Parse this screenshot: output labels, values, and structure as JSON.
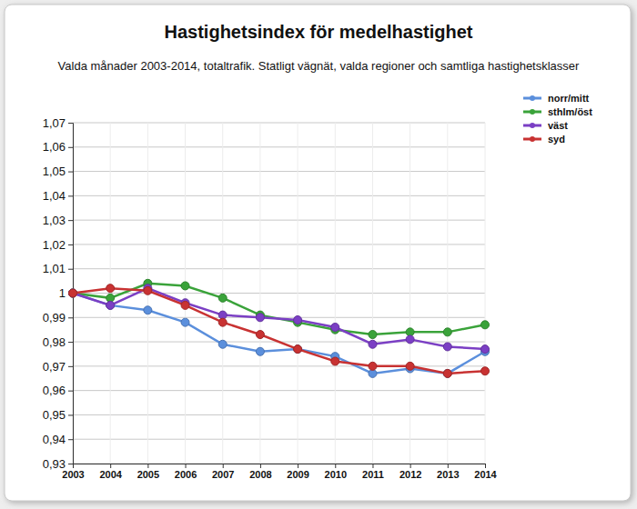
{
  "chart_data": {
    "type": "line",
    "title": "Hastighetsindex för medelhastighet",
    "subtitle": "Valda månader 2003-2014, totaltrafik. Statligt vägnät, valda regioner och samtliga hastighetsklasser",
    "x": [
      2003,
      2004,
      2005,
      2006,
      2007,
      2008,
      2009,
      2010,
      2011,
      2012,
      2013,
      2014
    ],
    "xlim": [
      2003,
      2014
    ],
    "xticks": [
      2003,
      2004,
      2005,
      2006,
      2007,
      2008,
      2009,
      2010,
      2011,
      2012,
      2013,
      2014
    ],
    "ylim": [
      0.93,
      1.07
    ],
    "yticks": [
      {
        "value": 0.93,
        "label": "0,93"
      },
      {
        "value": 0.94,
        "label": "0,94"
      },
      {
        "value": 0.95,
        "label": "0,95"
      },
      {
        "value": 0.96,
        "label": "0,96"
      },
      {
        "value": 0.97,
        "label": "0,97"
      },
      {
        "value": 0.98,
        "label": "0,98"
      },
      {
        "value": 0.99,
        "label": "0,99"
      },
      1,
      {
        "value": 1.01,
        "label": "1,01"
      },
      {
        "value": 1.02,
        "label": "1,02"
      },
      {
        "value": 1.03,
        "label": "1,03"
      },
      {
        "value": 1.04,
        "label": "1,04"
      },
      {
        "value": 1.05,
        "label": "1,05"
      },
      {
        "value": 1.06,
        "label": "1,06"
      },
      {
        "value": 1.07,
        "label": "1,07"
      }
    ],
    "grid": true,
    "legend": "top-right",
    "marker": "circle",
    "series": [
      {
        "name": "norr/mitt",
        "color": "#5b8fdc",
        "values": [
          1.0,
          0.995,
          0.993,
          0.988,
          0.979,
          0.976,
          0.977,
          0.974,
          0.967,
          0.969,
          0.967,
          0.976
        ]
      },
      {
        "name": "sthlm/öst",
        "color": "#3aa33a",
        "values": [
          1.0,
          0.998,
          1.004,
          1.003,
          0.998,
          0.991,
          0.988,
          0.985,
          0.983,
          0.984,
          0.984,
          0.987
        ]
      },
      {
        "name": "väst",
        "color": "#7b3fc4",
        "values": [
          1.0,
          0.995,
          1.002,
          0.996,
          0.991,
          0.99,
          0.989,
          0.986,
          0.979,
          0.981,
          0.978,
          0.977
        ]
      },
      {
        "name": "syd",
        "color": "#c83232",
        "values": [
          1.0,
          1.002,
          1.001,
          0.995,
          0.988,
          0.983,
          0.977,
          0.972,
          0.97,
          0.97,
          0.967,
          0.968
        ]
      }
    ]
  }
}
